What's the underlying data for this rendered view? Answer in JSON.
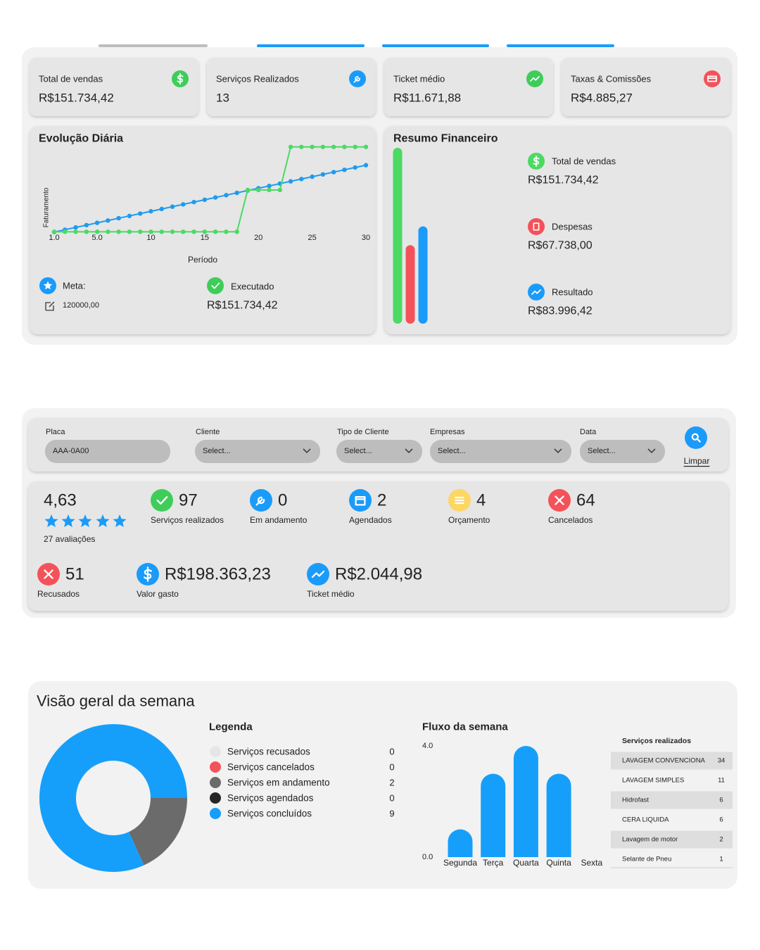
{
  "kpis": [
    {
      "label": "Total de vendas",
      "value": "R$151.734,42",
      "color": "#3fcd5a"
    },
    {
      "label": "Serviços Realizados",
      "value": "13",
      "color": "#1a9bfa"
    },
    {
      "label": "Ticket médio",
      "value": "R$11.671,88",
      "color": "#3fcd5a"
    },
    {
      "label": "Taxas & Comissões",
      "value": "R$4.885,27",
      "color": "#f4525a"
    }
  ],
  "daily_chart": {
    "type": "line",
    "title": "Evolução Diária",
    "y_label": "Faturamento",
    "x_label": "Período",
    "x": [
      1,
      2,
      3,
      4,
      5,
      6,
      7,
      8,
      9,
      10,
      11,
      12,
      13,
      14,
      15,
      16,
      17,
      18,
      19,
      20,
      21,
      22,
      23,
      24,
      25,
      26,
      27,
      28,
      29,
      30
    ],
    "series": [
      {
        "color": "#1e9bf0",
        "values": [
          4000,
          8000,
          12000,
          16000,
          20000,
          24000,
          28000,
          32000,
          36000,
          40000,
          44000,
          48000,
          52000,
          56000,
          60000,
          64000,
          68000,
          72000,
          76000,
          80000,
          84000,
          88000,
          92000,
          96000,
          100000,
          104000,
          108000,
          112000,
          116000,
          120000
        ]
      },
      {
        "color": "#4cd964",
        "values": [
          4500,
          4500,
          4500,
          4500,
          4500,
          4500,
          4500,
          4500,
          4500,
          4500,
          4500,
          4500,
          4500,
          4500,
          4500,
          4500,
          4500,
          4500,
          77000,
          77000,
          77000,
          77000,
          151734.42,
          151734.42,
          151734.42,
          151734.42,
          151734.42,
          151734.42,
          151734.42,
          151734.42
        ]
      }
    ],
    "xlim": [
      1,
      30
    ],
    "xticks": [
      {
        "value": 1,
        "label": "1.0"
      },
      {
        "value": 5,
        "label": "5.0"
      },
      10,
      15,
      20,
      25,
      30
    ],
    "ylim": [
      0,
      160000
    ]
  },
  "meta": {
    "label": "Meta:",
    "value": "120000,00"
  },
  "executado": {
    "label": "Executado",
    "value": "R$151.734,42"
  },
  "resumo": {
    "type": "bar",
    "title": "Resumo Financeiro",
    "labels": [
      "Total de vendas",
      "Despesas",
      "Resultado"
    ],
    "values": [
      151734.42,
      67738,
      83996.42
    ],
    "value_labels": [
      "R$151.734,42",
      "R$67.738,00",
      "R$83.996,42"
    ],
    "colors": [
      "#4cd964",
      "#f4525a",
      "#1a9bfa"
    ]
  },
  "filters": {
    "fields": [
      {
        "label": "Placa",
        "placeholder": "AAA-0A00"
      },
      {
        "label": "Cliente",
        "placeholder": "Select..."
      },
      {
        "label": "Tipo de Cliente",
        "placeholder": "Select..."
      },
      {
        "label": "Empresas",
        "placeholder": "Select..."
      },
      {
        "label": "Data",
        "placeholder": "Select..."
      }
    ],
    "clear": "Limpar"
  },
  "stats": {
    "rating": "4,63",
    "reviews": "27 avaliações",
    "items": [
      {
        "value": "97",
        "label": "Serviços realizados",
        "color": "#3fcd5a"
      },
      {
        "value": "0",
        "label": "Em andamento",
        "color": "#1a9bfa"
      },
      {
        "value": "2",
        "label": "Agendados",
        "color": "#1a9bfa"
      },
      {
        "value": "4",
        "label": "Orçamento",
        "color": "#fdd663"
      },
      {
        "value": "64",
        "label": "Cancelados",
        "color": "#f4525a"
      },
      {
        "value": "51",
        "label": "Recusados",
        "color": "#f4525a"
      },
      {
        "value": "R$198.363,23",
        "label": "Valor gasto",
        "color": "#1a9bfa"
      },
      {
        "value": "R$2.044,98",
        "label": "Ticket médio",
        "color": "#1a9bfa"
      }
    ]
  },
  "week": {
    "title": "Visão geral da semana",
    "legend_title": "Legenda",
    "donut": {
      "type": "donut",
      "categories": [
        "Serviços recusados",
        "Serviços cancelados",
        "Serviços em andamento",
        "Serviços agendados",
        "Serviços concluídos"
      ],
      "values": [
        0,
        0,
        2,
        0,
        9
      ],
      "colors": [
        "#e6e6e6",
        "#f4525a",
        "#6a6b6a",
        "#262626",
        "#169ffa"
      ]
    },
    "flow": {
      "type": "bar",
      "title": "Fluxo da semana",
      "categories": [
        "Segunda",
        "Terça",
        "Quarta",
        "Quinta",
        "Sexta"
      ],
      "values": [
        1,
        3,
        4,
        3,
        0
      ],
      "color": "#169ffa",
      "ylim": [
        0,
        4
      ],
      "yticks": [
        {
          "value": 4,
          "label": "4.0"
        },
        {
          "value": 0,
          "label": "0.0"
        }
      ]
    },
    "table": {
      "title": "Serviços realizados",
      "rows": [
        [
          "LAVAGEM CONVENCIONA",
          34
        ],
        [
          "LAVAGEM SIMPLES",
          11
        ],
        [
          "Hidrofast",
          6
        ],
        [
          "CERA LIQUIDA",
          6
        ],
        [
          "Lavagem de motor",
          2
        ],
        [
          "Selante de Pneu",
          1
        ]
      ]
    }
  }
}
